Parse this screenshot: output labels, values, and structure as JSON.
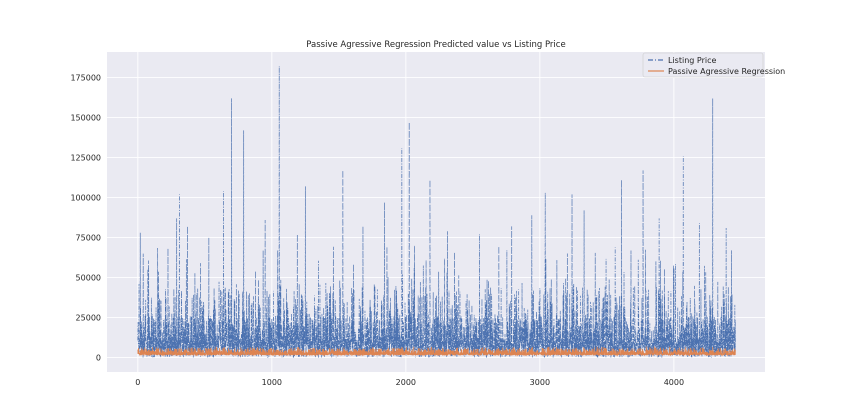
{
  "chart_data": {
    "type": "line",
    "title": "Passive Agressive Regression Predicted value vs Listing Price",
    "xlabel": "",
    "ylabel": "",
    "xlim": [
      -230,
      4680
    ],
    "ylim": [
      -9000,
      191000
    ],
    "x_ticks": [
      0,
      1000,
      2000,
      3000,
      4000
    ],
    "y_ticks": [
      0,
      25000,
      50000,
      75000,
      100000,
      125000,
      150000,
      175000
    ],
    "grid": true,
    "legend_position": "top-right",
    "n_points": 4460,
    "series": [
      {
        "name": "Listing Price",
        "color": "#4c72b0",
        "style": "dashdot",
        "peaks": [
          [
            18,
            78000
          ],
          [
            40,
            65000
          ],
          [
            290,
            87000
          ],
          [
            310,
            102000
          ],
          [
            370,
            82000
          ],
          [
            530,
            75000
          ],
          [
            640,
            104000
          ],
          [
            700,
            162000
          ],
          [
            790,
            142000
          ],
          [
            950,
            86000
          ],
          [
            1055,
            182000
          ],
          [
            1190,
            77000
          ],
          [
            1250,
            107000
          ],
          [
            1530,
            117000
          ],
          [
            1680,
            82000
          ],
          [
            1840,
            97000
          ],
          [
            1970,
            131000
          ],
          [
            2025,
            147000
          ],
          [
            2180,
            111000
          ],
          [
            2310,
            79000
          ],
          [
            2550,
            77000
          ],
          [
            2790,
            82000
          ],
          [
            2940,
            89000
          ],
          [
            3040,
            103000
          ],
          [
            3240,
            102000
          ],
          [
            3330,
            92000
          ],
          [
            3610,
            111000
          ],
          [
            3770,
            117000
          ],
          [
            3890,
            87000
          ],
          [
            4070,
            126000
          ],
          [
            4190,
            84000
          ],
          [
            4290,
            162000
          ],
          [
            4390,
            81000
          ],
          [
            4430,
            67000
          ]
        ],
        "typical_range": [
          0,
          45000
        ]
      },
      {
        "name": "Passive Agressive Regression",
        "color": "#dd8452",
        "style": "solid",
        "typical_range": [
          0,
          7000
        ]
      }
    ]
  }
}
